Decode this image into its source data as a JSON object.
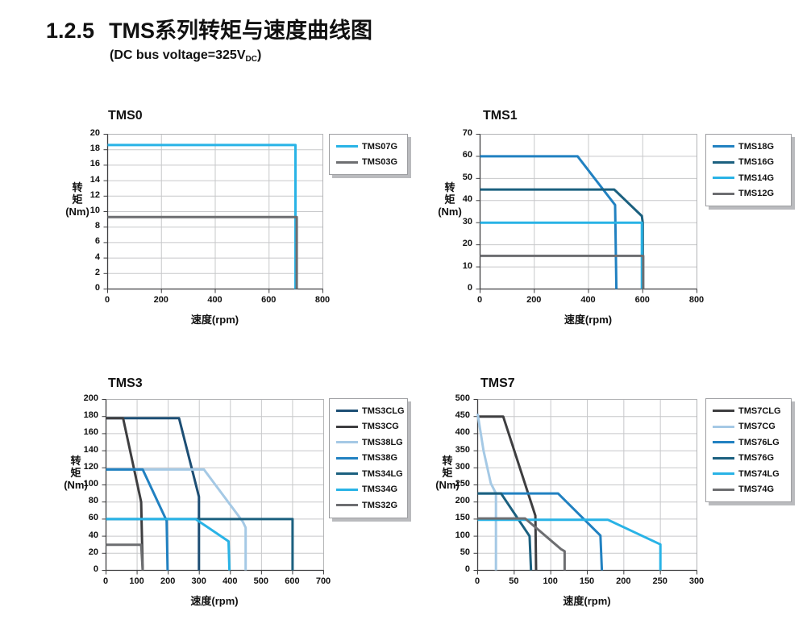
{
  "page": {
    "section_number": "1.2.5",
    "title": "TMS系列转矩与速度曲线图",
    "subtitle_prefix": "(DC bus voltage=325V",
    "subtitle_sub": "DC",
    "subtitle_suffix": ")"
  },
  "chart_data": [
    {
      "id": "tms0",
      "type": "line",
      "title": "TMS0",
      "xlabel": "速度(rpm)",
      "ylabel_lines": [
        "转",
        "矩",
        "(Nm)"
      ],
      "xlim": [
        0,
        800
      ],
      "ylim": [
        0,
        20
      ],
      "xticks": [
        0,
        200,
        400,
        600,
        800
      ],
      "yticks": [
        0,
        2,
        4,
        6,
        8,
        10,
        12,
        14,
        16,
        18,
        20
      ],
      "grid": true,
      "legend_position": "right",
      "series": [
        {
          "name": "TMS07G",
          "color": "#29b3e6",
          "points": [
            [
              0,
              18.6
            ],
            [
              698,
              18.6
            ],
            [
              698,
              0
            ]
          ]
        },
        {
          "name": "TMS03G",
          "color": "#6d6e71",
          "points": [
            [
              0,
              9.3
            ],
            [
              703,
              9.3
            ],
            [
              703,
              0
            ]
          ]
        }
      ]
    },
    {
      "id": "tms1",
      "type": "line",
      "title": "TMS1",
      "xlabel": "速度(rpm)",
      "ylabel_lines": [
        "转",
        "矩",
        "(Nm)"
      ],
      "xlim": [
        0,
        800
      ],
      "ylim": [
        0,
        70
      ],
      "xticks": [
        0,
        200,
        400,
        600,
        800
      ],
      "yticks": [
        0,
        10,
        20,
        30,
        40,
        50,
        60,
        70
      ],
      "grid": true,
      "legend_position": "right",
      "series": [
        {
          "name": "TMS18G",
          "color": "#2181c1",
          "points": [
            [
              0,
              60
            ],
            [
              360,
              60
            ],
            [
              498,
              38
            ],
            [
              503,
              0
            ]
          ]
        },
        {
          "name": "TMS16G",
          "color": "#1b607f",
          "points": [
            [
              0,
              45
            ],
            [
              495,
              45
            ],
            [
              597,
              33
            ],
            [
              600,
              30
            ],
            [
              600,
              0
            ]
          ]
        },
        {
          "name": "TMS14G",
          "color": "#29b3e6",
          "points": [
            [
              0,
              30
            ],
            [
              597,
              30
            ],
            [
              597,
              0
            ]
          ]
        },
        {
          "name": "TMS12G",
          "color": "#6d6e71",
          "points": [
            [
              0,
              15
            ],
            [
              602,
              15
            ],
            [
              602,
              0
            ]
          ]
        }
      ]
    },
    {
      "id": "tms3",
      "type": "line",
      "title": "TMS3",
      "xlabel": "速度(rpm)",
      "ylabel_lines": [
        "转",
        "矩",
        "(Nm)"
      ],
      "xlim": [
        0,
        700
      ],
      "ylim": [
        0,
        200
      ],
      "xticks": [
        0,
        100,
        200,
        300,
        400,
        500,
        600,
        700
      ],
      "yticks": [
        0,
        20,
        40,
        60,
        80,
        100,
        120,
        140,
        160,
        180,
        200
      ],
      "grid": true,
      "legend_position": "right",
      "series": [
        {
          "name": "TMS3CLG",
          "color": "#1d4e74",
          "points": [
            [
              0,
              178
            ],
            [
              235,
              178
            ],
            [
              299,
              86
            ],
            [
              299,
              0
            ]
          ]
        },
        {
          "name": "TMS3CG",
          "color": "#3e3e40",
          "points": [
            [
              0,
              178
            ],
            [
              55,
              178
            ],
            [
              113,
              80
            ],
            [
              118,
              0
            ]
          ]
        },
        {
          "name": "TMS38LG",
          "color": "#a5c9e5",
          "points": [
            [
              0,
              118
            ],
            [
              315,
              118
            ],
            [
              440,
              57
            ],
            [
              449,
              50
            ],
            [
              449,
              0
            ]
          ]
        },
        {
          "name": "TMS38G",
          "color": "#2181c1",
          "points": [
            [
              0,
              118
            ],
            [
              118,
              118
            ],
            [
              195,
              58
            ],
            [
              198,
              0
            ]
          ]
        },
        {
          "name": "TMS34LG",
          "color": "#1b607f",
          "points": [
            [
              0,
              60
            ],
            [
              600,
              60
            ],
            [
              600,
              0
            ]
          ]
        },
        {
          "name": "TMS34G",
          "color": "#29b3e6",
          "points": [
            [
              0,
              60
            ],
            [
              288,
              60
            ],
            [
              394,
              34
            ],
            [
              397,
              0
            ]
          ]
        },
        {
          "name": "TMS32G",
          "color": "#6d6e71",
          "points": [
            [
              0,
              30
            ],
            [
              113,
              30
            ],
            [
              118,
              0
            ]
          ]
        }
      ]
    },
    {
      "id": "tms7",
      "type": "line",
      "title": "TMS7",
      "xlabel": "速度(rpm)",
      "ylabel_lines": [
        "转",
        "矩",
        "(Nm)"
      ],
      "xlim": [
        0,
        300
      ],
      "ylim": [
        0,
        500
      ],
      "xticks": [
        0,
        50,
        100,
        150,
        200,
        250,
        300
      ],
      "yticks": [
        0,
        50,
        100,
        150,
        200,
        250,
        300,
        350,
        400,
        450,
        500
      ],
      "grid": true,
      "legend_position": "right",
      "series": [
        {
          "name": "TMS7CLG",
          "color": "#3e3e40",
          "points": [
            [
              0,
              450
            ],
            [
              35,
              450
            ],
            [
              79,
              160
            ],
            [
              80,
              0
            ]
          ]
        },
        {
          "name": "TMS7CG",
          "color": "#a5c9e5",
          "points": [
            [
              0,
              458
            ],
            [
              8,
              350
            ],
            [
              18,
              255
            ],
            [
              25,
              225
            ],
            [
              25,
              0
            ]
          ]
        },
        {
          "name": "TMS76LG",
          "color": "#2181c1",
          "points": [
            [
              0,
              225
            ],
            [
              110,
              225
            ],
            [
              168,
              102
            ],
            [
              170,
              0
            ]
          ]
        },
        {
          "name": "TMS76G",
          "color": "#1b607f",
          "points": [
            [
              0,
              225
            ],
            [
              32,
              225
            ],
            [
              71,
              100
            ],
            [
              73,
              0
            ]
          ]
        },
        {
          "name": "TMS74LG",
          "color": "#29b3e6",
          "points": [
            [
              0,
              148
            ],
            [
              178,
              148
            ],
            [
              250,
              76
            ],
            [
              250,
              0
            ]
          ]
        },
        {
          "name": "TMS74G",
          "color": "#6d6e71",
          "points": [
            [
              0,
              152
            ],
            [
              65,
              152
            ],
            [
              114,
              62
            ],
            [
              119,
              56
            ],
            [
              119,
              0
            ]
          ]
        }
      ]
    }
  ]
}
